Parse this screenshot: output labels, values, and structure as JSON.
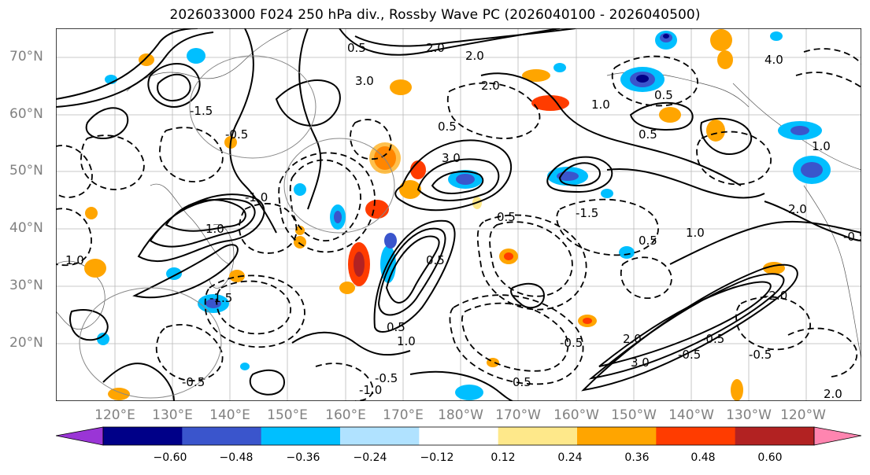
{
  "title": "2026033000 F024 250 hPa div., Rossby Wave PC (2026040100 - 2026040500)",
  "lat_labels": [
    "70°N",
    "60°N",
    "50°N",
    "40°N",
    "30°N",
    "20°N"
  ],
  "lon_labels": [
    "120°E",
    "130°E",
    "140°E",
    "150°E",
    "160°E",
    "170°E",
    "180°W",
    "170°W",
    "160°W",
    "150°W",
    "140°W",
    "130°W",
    "120°W"
  ],
  "contour_labels": [
    "-0.5",
    "-1.0",
    "-1.5",
    "-2.0",
    "0.5",
    "1.0",
    "2.0",
    "3.0",
    "4.0"
  ],
  "colorbar": {
    "ticks": [
      "−0.60",
      "−0.48",
      "−0.36",
      "−0.24",
      "−0.12",
      "0.12",
      "0.24",
      "0.36",
      "0.48",
      "0.60"
    ],
    "colors": [
      "#9a35d6",
      "#000088",
      "#3a55cc",
      "#00bfff",
      "#b0e2ff",
      "#ffffff",
      "#fee88a",
      "#ffa500",
      "#ff3c00",
      "#b22222",
      "#ff85b0"
    ]
  }
}
